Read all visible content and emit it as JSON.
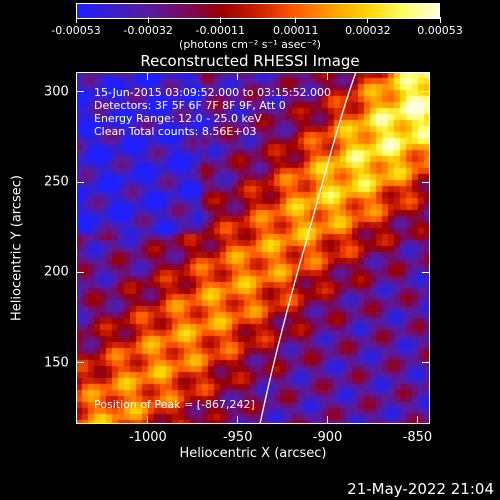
{
  "colorbar": {
    "tick_labels": [
      "-0.00053",
      "-0.00032",
      "-0.00011",
      "0.00011",
      "0.00032",
      "0.00053"
    ],
    "range": [
      -0.00053,
      0.00053
    ],
    "colors": [
      "#1f1fff",
      "#3a1fc8",
      "#5a1aa0",
      "#7a0a60",
      "#9a0000",
      "#d02000",
      "#ff5a00",
      "#ff9c00",
      "#ffd400",
      "#ffff60",
      "#ffffe0"
    ]
  },
  "units_label": "(photons cm⁻² s⁻¹ asec⁻²)",
  "title": "Reconstructed RHESSI Image",
  "annotations": {
    "time_range": "15-Jun-2015 03:09:52.000 to 03:15:52.000",
    "detectors": "Detectors: 3F 5F 6F 7F 8F 9F, Att 0",
    "energy": "Energy Range: 12.0 - 25.0 keV",
    "clean": "Clean    Total counts: 8.56E+03",
    "peak": "Position of Peak = [-867,242]"
  },
  "axes": {
    "x_label": "Heliocentric X (arcsec)",
    "y_label": "Heliocentric Y (arcsec)",
    "x_ticks": [
      "-1000",
      "-950",
      "-900",
      "-850"
    ],
    "y_ticks": [
      "300",
      "250",
      "200",
      "150"
    ],
    "x_range": [
      -1040,
      -843
    ],
    "y_range": [
      116,
      311
    ]
  },
  "footer_date": "21-May-2022 21:04"
}
